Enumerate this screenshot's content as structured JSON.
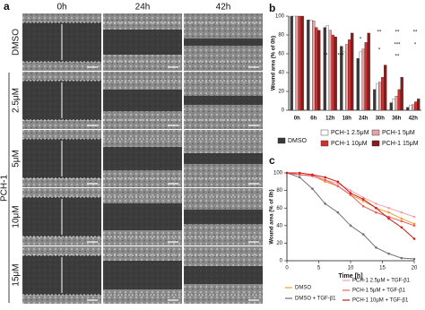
{
  "panel_a": {
    "label": "a",
    "columns": [
      "0h",
      "24h",
      "42h"
    ],
    "rows": [
      "DMSO",
      "2.5μM",
      "5μM",
      "10μM",
      "15μM"
    ],
    "group": "PCH-1"
  },
  "chart_data": [
    {
      "type": "bar",
      "panel": "b",
      "y_label": "Wound area (% of 0h)",
      "categories": [
        "0h",
        "6h",
        "12h",
        "18h",
        "24h",
        "30h",
        "36h",
        "42h"
      ],
      "series": [
        {
          "name": "DMSO",
          "color": "#3a3a3a",
          "values": [
            100,
            96,
            88,
            68,
            55,
            22,
            8,
            3
          ]
        },
        {
          "name": "PCH-1 2.5μM",
          "color": "#ffffff",
          "values": [
            100,
            96,
            90,
            62,
            62,
            28,
            12,
            5
          ]
        },
        {
          "name": "PCH-1 5μM",
          "color": "#e8a0a0",
          "values": [
            100,
            95,
            85,
            70,
            65,
            30,
            15,
            6
          ]
        },
        {
          "name": "PCH-1 10μM",
          "color": "#d03030",
          "values": [
            100,
            88,
            80,
            75,
            72,
            35,
            22,
            9
          ]
        },
        {
          "name": "PCH-1 15μM",
          "color": "#8b1a1a",
          "values": [
            100,
            85,
            78,
            82,
            82,
            48,
            35,
            12
          ]
        }
      ],
      "annotations": [
        "**",
        "***",
        "*",
        "**",
        "**",
        "**",
        "*",
        "***",
        "*",
        "**"
      ],
      "ylim": [
        0,
        100
      ],
      "yticks": [
        0,
        20,
        40,
        60,
        80,
        100
      ]
    },
    {
      "type": "line",
      "panel": "c",
      "x_label": "Time [h]",
      "y_label": "Wound area (% of 0h)",
      "x": [
        0,
        2,
        4,
        6,
        8,
        10,
        12,
        14,
        16,
        18,
        20
      ],
      "series": [
        {
          "name": "DMSO",
          "color": "#f0a030",
          "values": [
            100,
            98,
            97,
            90,
            85,
            75,
            68,
            60,
            55,
            48,
            42
          ]
        },
        {
          "name": "DMSO + TGF-β1",
          "color": "#707070",
          "values": [
            100,
            95,
            82,
            65,
            55,
            40,
            30,
            15,
            8,
            3,
            2
          ]
        },
        {
          "name": "PCH-1 2.5μM + TGF-β1",
          "color": "#f4a0b0",
          "values": [
            100,
            98,
            96,
            92,
            88,
            80,
            72,
            65,
            60,
            55,
            50
          ]
        },
        {
          "name": "PCH-1 5μM + TGF-β1",
          "color": "#e86060",
          "values": [
            100,
            98,
            97,
            92,
            85,
            75,
            62,
            55,
            50,
            45,
            40
          ]
        },
        {
          "name": "PCH-1 10μM + TGF-β1",
          "color": "#d01818",
          "values": [
            100,
            100,
            98,
            95,
            90,
            77,
            70,
            60,
            48,
            38,
            25
          ]
        }
      ],
      "xlim": [
        0,
        20
      ],
      "xticks": [
        0,
        5,
        10,
        15,
        20
      ],
      "ylim": [
        0,
        100
      ],
      "yticks": [
        0,
        20,
        40,
        60,
        80,
        100
      ]
    }
  ]
}
